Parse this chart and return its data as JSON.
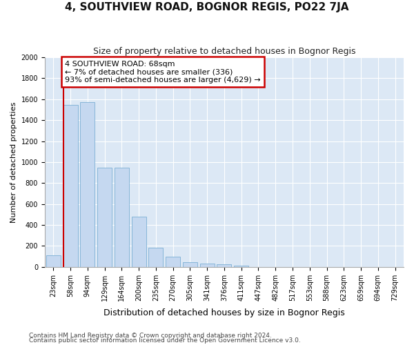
{
  "title": "4, SOUTHVIEW ROAD, BOGNOR REGIS, PO22 7JA",
  "subtitle": "Size of property relative to detached houses in Bognor Regis",
  "xlabel": "Distribution of detached houses by size in Bognor Regis",
  "ylabel": "Number of detached properties",
  "categories": [
    "23sqm",
    "58sqm",
    "94sqm",
    "129sqm",
    "164sqm",
    "200sqm",
    "235sqm",
    "270sqm",
    "305sqm",
    "341sqm",
    "376sqm",
    "411sqm",
    "447sqm",
    "482sqm",
    "517sqm",
    "553sqm",
    "588sqm",
    "623sqm",
    "659sqm",
    "694sqm",
    "729sqm"
  ],
  "values": [
    110,
    1545,
    1570,
    950,
    950,
    480,
    185,
    95,
    48,
    30,
    22,
    15,
    0,
    0,
    0,
    0,
    0,
    0,
    0,
    0,
    0
  ],
  "bar_color": "#c5d8f0",
  "bar_edgecolor": "#7bafd4",
  "vline_x": 0.58,
  "vline_color": "#cc0000",
  "annotation_text": "4 SOUTHVIEW ROAD: 68sqm\n← 7% of detached houses are smaller (336)\n93% of semi-detached houses are larger (4,629) →",
  "annotation_box_facecolor": "#ffffff",
  "annotation_box_edgecolor": "#cc0000",
  "ylim": [
    0,
    2000
  ],
  "yticks": [
    0,
    200,
    400,
    600,
    800,
    1000,
    1200,
    1400,
    1600,
    1800,
    2000
  ],
  "footer1": "Contains HM Land Registry data © Crown copyright and database right 2024.",
  "footer2": "Contains public sector information licensed under the Open Government Licence v3.0.",
  "title_fontsize": 11,
  "subtitle_fontsize": 9,
  "xlabel_fontsize": 9,
  "ylabel_fontsize": 8,
  "tick_fontsize": 7,
  "annotation_fontsize": 8,
  "footer_fontsize": 6.5,
  "fig_bg_color": "#ffffff",
  "plot_bg_color": "#dce8f5",
  "grid_color": "#ffffff"
}
